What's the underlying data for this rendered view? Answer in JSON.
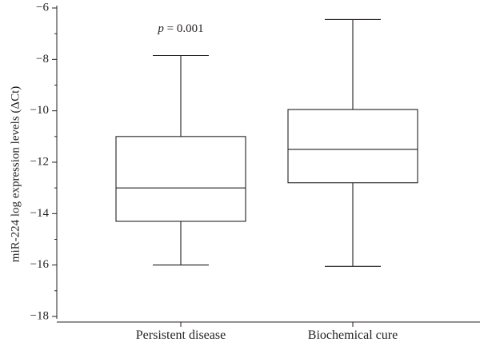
{
  "chart_data": {
    "type": "box",
    "ylabel": "miR-224 log expression levels (ΔCt)",
    "ylim": [
      -18,
      -6
    ],
    "yticks": [
      -6,
      -8,
      -10,
      -12,
      -14,
      -16,
      -18
    ],
    "ytick_labels": [
      "−6",
      "−8",
      "−10",
      "−12",
      "−14",
      "−16",
      "−18"
    ],
    "grid": false,
    "categories": [
      "Persistent disease",
      "Biochemical cure"
    ],
    "boxes": [
      {
        "min": -16.0,
        "q1": -14.3,
        "median": -13.0,
        "q3": -11.0,
        "max": -7.85
      },
      {
        "min": -16.05,
        "q1": -12.8,
        "median": -11.5,
        "q3": -9.95,
        "max": -6.45
      }
    ],
    "annotation": {
      "p_symbol": "p",
      "p_text": " = 0.001"
    }
  }
}
